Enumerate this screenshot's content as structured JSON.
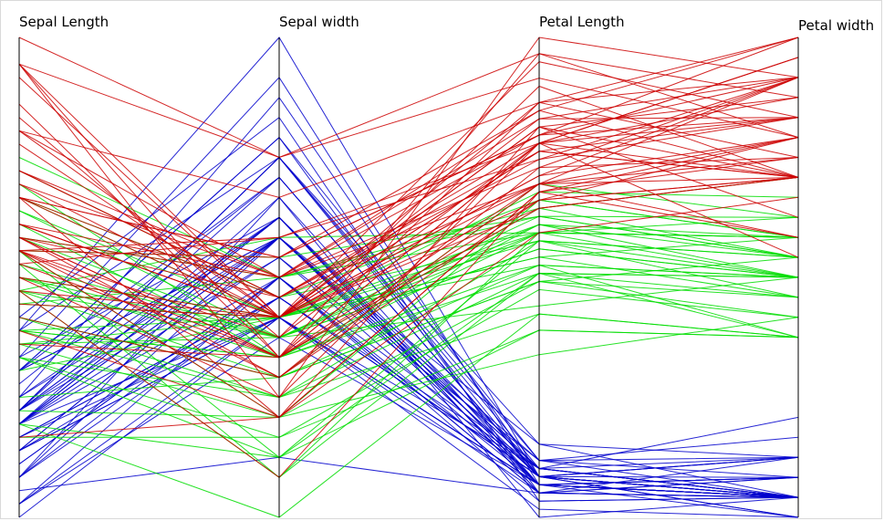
{
  "chart_data": {
    "type": "parallel-coordinates",
    "axes": [
      "Sepal Length",
      "Sepal width",
      "Petal Length",
      "Petal width"
    ],
    "ranges": [
      [
        4.3,
        7.9
      ],
      [
        2.0,
        4.4
      ],
      [
        1.0,
        6.9
      ],
      [
        0.1,
        2.5
      ]
    ],
    "grid": false,
    "series": [
      {
        "color": "#0000cc",
        "values": [
          [
            5.1,
            3.5,
            1.4,
            0.2
          ],
          [
            4.9,
            3.0,
            1.4,
            0.2
          ],
          [
            4.7,
            3.2,
            1.3,
            0.2
          ],
          [
            4.6,
            3.1,
            1.5,
            0.2
          ],
          [
            5.0,
            3.6,
            1.4,
            0.2
          ],
          [
            5.4,
            3.9,
            1.7,
            0.4
          ],
          [
            4.6,
            3.4,
            1.4,
            0.3
          ],
          [
            5.0,
            3.4,
            1.5,
            0.2
          ],
          [
            4.4,
            2.9,
            1.4,
            0.2
          ],
          [
            4.9,
            3.1,
            1.5,
            0.1
          ],
          [
            5.4,
            3.7,
            1.5,
            0.2
          ],
          [
            4.8,
            3.4,
            1.6,
            0.2
          ],
          [
            4.8,
            3.0,
            1.4,
            0.1
          ],
          [
            4.3,
            3.0,
            1.1,
            0.1
          ],
          [
            5.8,
            4.0,
            1.2,
            0.2
          ],
          [
            5.7,
            4.4,
            1.5,
            0.4
          ],
          [
            5.4,
            3.9,
            1.3,
            0.4
          ],
          [
            5.1,
            3.5,
            1.4,
            0.3
          ],
          [
            5.7,
            3.8,
            1.7,
            0.3
          ],
          [
            5.1,
            3.8,
            1.5,
            0.3
          ],
          [
            5.4,
            3.4,
            1.7,
            0.2
          ],
          [
            5.1,
            3.7,
            1.5,
            0.4
          ],
          [
            4.6,
            3.6,
            1.0,
            0.2
          ],
          [
            5.1,
            3.3,
            1.7,
            0.5
          ],
          [
            4.8,
            3.4,
            1.9,
            0.2
          ],
          [
            5.0,
            3.0,
            1.6,
            0.2
          ],
          [
            5.0,
            3.4,
            1.6,
            0.4
          ],
          [
            5.2,
            3.5,
            1.5,
            0.2
          ],
          [
            5.2,
            3.4,
            1.4,
            0.2
          ],
          [
            4.7,
            3.2,
            1.6,
            0.2
          ],
          [
            4.8,
            3.1,
            1.6,
            0.2
          ],
          [
            5.4,
            3.4,
            1.5,
            0.4
          ],
          [
            5.2,
            4.1,
            1.5,
            0.1
          ],
          [
            5.5,
            4.2,
            1.4,
            0.2
          ],
          [
            4.9,
            3.1,
            1.5,
            0.2
          ],
          [
            5.0,
            3.2,
            1.2,
            0.2
          ],
          [
            5.5,
            3.5,
            1.3,
            0.2
          ],
          [
            4.4,
            3.0,
            1.3,
            0.2
          ],
          [
            5.1,
            3.4,
            1.5,
            0.2
          ],
          [
            5.0,
            3.5,
            1.3,
            0.3
          ],
          [
            4.5,
            2.3,
            1.3,
            0.3
          ],
          [
            4.4,
            3.2,
            1.3,
            0.2
          ],
          [
            5.0,
            3.5,
            1.6,
            0.6
          ],
          [
            5.1,
            3.8,
            1.9,
            0.4
          ],
          [
            4.8,
            3.0,
            1.4,
            0.3
          ],
          [
            5.1,
            3.8,
            1.6,
            0.2
          ],
          [
            4.6,
            3.2,
            1.4,
            0.2
          ],
          [
            5.3,
            3.7,
            1.5,
            0.2
          ],
          [
            5.0,
            3.3,
            1.4,
            0.2
          ]
        ]
      },
      {
        "color": "#00dd00",
        "values": [
          [
            7.0,
            3.2,
            4.7,
            1.4
          ],
          [
            6.4,
            3.2,
            4.5,
            1.5
          ],
          [
            6.9,
            3.1,
            4.9,
            1.5
          ],
          [
            5.5,
            2.3,
            4.0,
            1.3
          ],
          [
            6.5,
            2.8,
            4.6,
            1.5
          ],
          [
            5.7,
            2.8,
            4.5,
            1.3
          ],
          [
            6.3,
            3.3,
            4.7,
            1.6
          ],
          [
            4.9,
            2.4,
            3.3,
            1.0
          ],
          [
            6.6,
            2.9,
            4.6,
            1.3
          ],
          [
            5.2,
            2.7,
            3.9,
            1.4
          ],
          [
            5.0,
            2.0,
            3.5,
            1.0
          ],
          [
            5.9,
            3.0,
            4.2,
            1.5
          ],
          [
            6.0,
            2.2,
            4.0,
            1.0
          ],
          [
            6.1,
            2.9,
            4.7,
            1.4
          ],
          [
            5.6,
            2.9,
            3.6,
            1.3
          ],
          [
            6.7,
            3.1,
            4.4,
            1.4
          ],
          [
            5.8,
            2.7,
            4.1,
            1.0
          ],
          [
            6.2,
            2.2,
            4.5,
            1.5
          ],
          [
            5.6,
            2.5,
            3.9,
            1.1
          ],
          [
            5.9,
            3.2,
            4.8,
            1.8
          ],
          [
            6.1,
            2.8,
            4.0,
            1.3
          ],
          [
            6.3,
            2.5,
            4.9,
            1.5
          ],
          [
            6.4,
            2.9,
            4.3,
            1.3
          ],
          [
            6.6,
            3.0,
            4.4,
            1.4
          ],
          [
            6.8,
            2.8,
            4.8,
            1.4
          ],
          [
            6.7,
            3.0,
            5.0,
            1.7
          ],
          [
            6.0,
            2.9,
            4.5,
            1.5
          ],
          [
            5.7,
            2.6,
            3.5,
            1.0
          ],
          [
            5.5,
            2.4,
            3.8,
            1.1
          ],
          [
            5.8,
            2.7,
            3.9,
            1.2
          ],
          [
            6.0,
            2.7,
            5.1,
            1.6
          ],
          [
            5.4,
            3.0,
            4.5,
            1.5
          ],
          [
            6.0,
            3.4,
            4.5,
            1.6
          ],
          [
            6.3,
            2.3,
            4.4,
            1.3
          ],
          [
            5.6,
            3.0,
            4.1,
            1.3
          ],
          [
            5.5,
            2.6,
            4.4,
            1.2
          ],
          [
            6.1,
            3.0,
            4.6,
            1.4
          ],
          [
            5.8,
            2.6,
            4.0,
            1.2
          ],
          [
            5.0,
            2.3,
            3.3,
            1.0
          ],
          [
            5.7,
            3.0,
            4.2,
            1.2
          ],
          [
            6.2,
            2.9,
            4.3,
            1.3
          ],
          [
            5.1,
            2.5,
            3.0,
            1.1
          ],
          [
            5.7,
            2.8,
            4.1,
            1.3
          ]
        ]
      },
      {
        "color": "#cc0000",
        "values": [
          [
            6.3,
            3.3,
            6.0,
            2.5
          ],
          [
            5.8,
            2.7,
            5.1,
            1.9
          ],
          [
            7.1,
            3.0,
            5.9,
            2.1
          ],
          [
            6.3,
            2.9,
            5.6,
            1.8
          ],
          [
            6.5,
            3.0,
            5.8,
            2.2
          ],
          [
            7.6,
            3.0,
            6.6,
            2.1
          ],
          [
            4.9,
            2.5,
            4.5,
            1.7
          ],
          [
            7.3,
            2.9,
            6.3,
            1.8
          ],
          [
            6.7,
            2.5,
            5.8,
            1.8
          ],
          [
            7.2,
            3.6,
            6.1,
            2.5
          ],
          [
            6.5,
            3.2,
            5.1,
            2.0
          ],
          [
            6.4,
            2.7,
            5.3,
            1.9
          ],
          [
            6.8,
            3.0,
            5.5,
            2.1
          ],
          [
            5.7,
            2.5,
            5.0,
            2.0
          ],
          [
            6.4,
            3.2,
            5.3,
            2.3
          ],
          [
            6.5,
            3.0,
            5.5,
            1.8
          ],
          [
            7.7,
            3.8,
            6.7,
            2.2
          ],
          [
            7.7,
            2.6,
            6.9,
            2.3
          ],
          [
            6.0,
            2.2,
            5.0,
            1.5
          ],
          [
            6.9,
            3.2,
            5.7,
            2.3
          ],
          [
            5.6,
            2.8,
            4.9,
            2.0
          ],
          [
            7.7,
            2.8,
            6.7,
            2.0
          ],
          [
            6.3,
            2.7,
            4.9,
            1.8
          ],
          [
            6.7,
            3.3,
            5.7,
            2.1
          ],
          [
            7.2,
            3.2,
            6.0,
            1.8
          ],
          [
            6.2,
            2.8,
            4.8,
            1.8
          ],
          [
            6.1,
            3.0,
            4.9,
            1.8
          ],
          [
            6.4,
            2.8,
            5.6,
            2.1
          ],
          [
            7.2,
            3.0,
            5.8,
            1.6
          ],
          [
            7.4,
            2.8,
            6.1,
            1.9
          ],
          [
            7.9,
            3.8,
            6.4,
            2.0
          ],
          [
            6.4,
            2.8,
            5.6,
            2.2
          ],
          [
            6.3,
            2.8,
            5.1,
            1.5
          ],
          [
            6.1,
            2.6,
            5.6,
            1.4
          ],
          [
            7.7,
            3.0,
            6.1,
            2.3
          ],
          [
            6.3,
            3.4,
            5.6,
            2.4
          ],
          [
            6.4,
            3.1,
            5.5,
            1.8
          ],
          [
            6.0,
            3.0,
            4.8,
            1.8
          ],
          [
            6.9,
            3.1,
            5.4,
            2.1
          ],
          [
            6.7,
            3.1,
            5.6,
            2.4
          ],
          [
            6.9,
            3.1,
            5.1,
            2.3
          ],
          [
            6.8,
            3.2,
            5.9,
            2.3
          ],
          [
            6.7,
            3.3,
            5.7,
            2.5
          ],
          [
            6.7,
            3.0,
            5.2,
            2.3
          ],
          [
            6.3,
            2.5,
            5.0,
            1.9
          ],
          [
            6.5,
            3.0,
            5.2,
            2.0
          ],
          [
            6.2,
            3.4,
            5.4,
            2.3
          ],
          [
            5.9,
            3.0,
            5.1,
            1.8
          ]
        ]
      }
    ]
  }
}
